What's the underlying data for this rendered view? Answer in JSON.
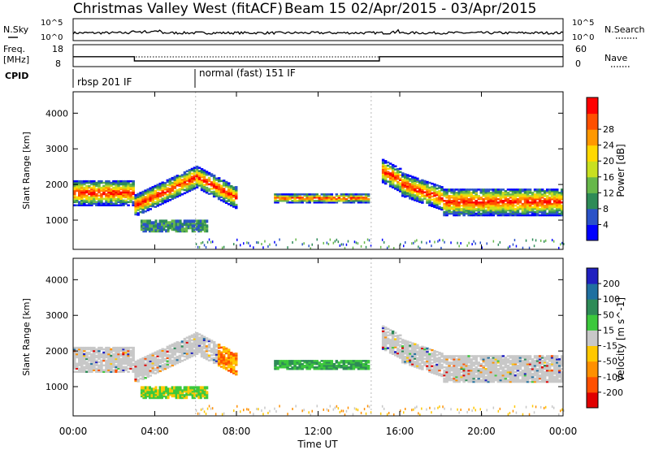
{
  "header": {
    "title": "Christmas Valley West (fitACF)",
    "beam": "Beam 15",
    "date_range": "02/Apr/2015 - 03/Apr/2015"
  },
  "params": {
    "nsky_label": "N.Sky",
    "nsearch_label": "N.Search",
    "freq_label_1": "Freq.",
    "freq_label_2": "[MHz]",
    "nave_label": "Nave",
    "cpid_label": "CPID",
    "nsky_ticks": [
      "10^5",
      "10^0"
    ],
    "nsearch_ticks": [
      "10^5",
      "10^0"
    ],
    "freq_ticks": [
      "18",
      "8"
    ],
    "nave_ticks": [
      "60",
      "0"
    ],
    "cpid_segments": [
      {
        "start_hour": 0,
        "label": "rbsp 201 IF"
      },
      {
        "start_hour": 6,
        "label": "normal (fast) 151 IF"
      }
    ],
    "freq_steps": [
      {
        "from": 0,
        "to": 3,
        "value": 12.5
      },
      {
        "from": 3,
        "to": 15,
        "value": 10.6
      },
      {
        "from": 15,
        "to": 24,
        "value": 12.5
      }
    ]
  },
  "chart_data": [
    {
      "type": "heatmap",
      "panel": "power",
      "ylabel": "Slant Range [km]",
      "ylim": [
        180,
        4600
      ],
      "yticks": [
        1000,
        2000,
        3000,
        4000
      ],
      "xlim": [
        0,
        24
      ],
      "colorbar_label": "Power [dB]",
      "colorbar_ticks": [
        4,
        8,
        12,
        16,
        20,
        24,
        28
      ],
      "colorscale": [
        "#0000ff",
        "#2a52c8",
        "#2e8b57",
        "#67b84a",
        "#c8e020",
        "#ffd800",
        "#ff9800",
        "#ff5000",
        "#ff0000"
      ]
    },
    {
      "type": "heatmap",
      "panel": "velocity",
      "ylabel": "Slant Range [km]",
      "ylim": [
        180,
        4600
      ],
      "yticks": [
        1000,
        2000,
        3000,
        4000
      ],
      "xlim": [
        0,
        24
      ],
      "colorbar_label": "Velocity [m s^-1]",
      "colorbar_ticks": [
        200,
        100,
        50,
        15,
        -15,
        -50,
        -100,
        -200
      ],
      "colorscale": [
        "#2020c0",
        "#2070a0",
        "#2e8b57",
        "#3cc83c",
        "#c8c8c8",
        "#ffc800",
        "#ff9000",
        "#ff5000",
        "#e00000"
      ]
    }
  ],
  "time_axis": {
    "label": "Time UT",
    "ticks": [
      "00:00",
      "04:00",
      "08:00",
      "12:00",
      "16:00",
      "20:00",
      "00:00"
    ]
  }
}
